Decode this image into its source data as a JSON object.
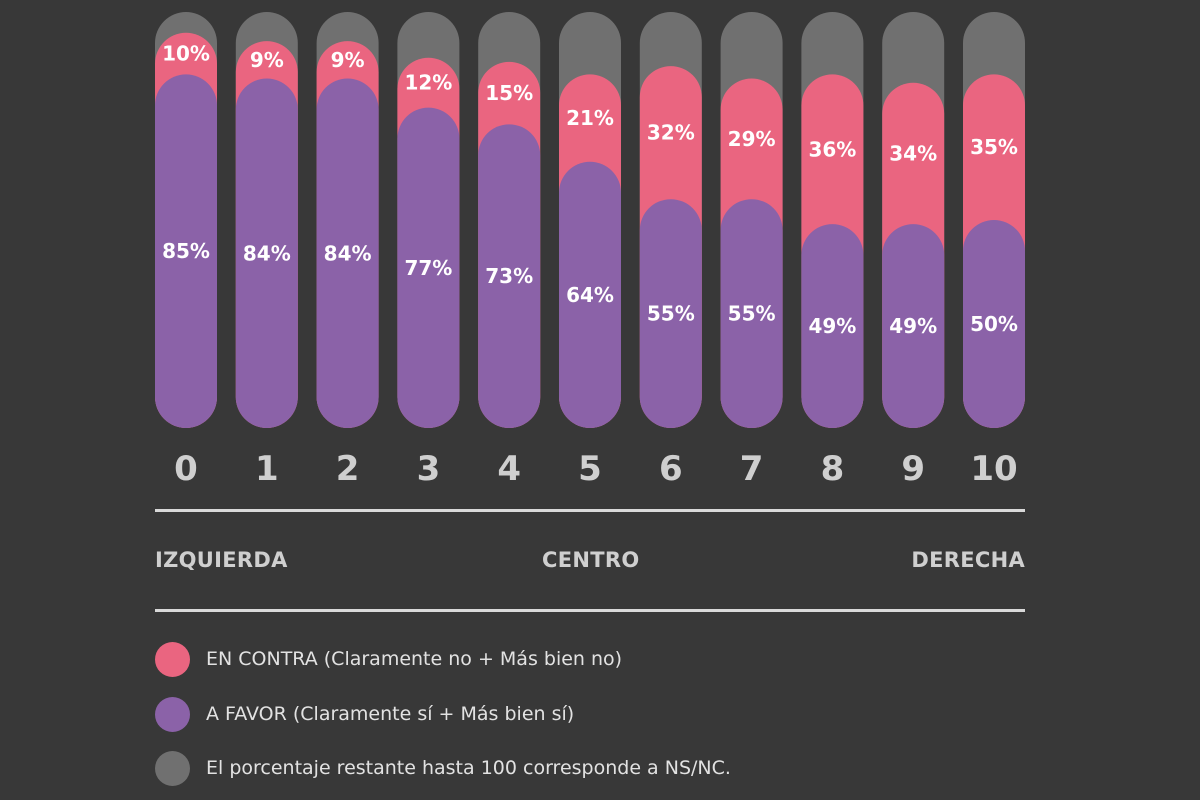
{
  "chart_data": {
    "type": "bar",
    "stacked": true,
    "categories": [
      "0",
      "1",
      "2",
      "3",
      "4",
      "5",
      "6",
      "7",
      "8",
      "9",
      "10"
    ],
    "series": [
      {
        "name": "A FAVOR (Claramente sí + Más bien sí)",
        "color": "#8b62a8",
        "values": [
          85,
          84,
          84,
          77,
          73,
          64,
          55,
          55,
          49,
          49,
          50
        ]
      },
      {
        "name": "EN CONTRA (Claramente no + Más bien no)",
        "color": "#ea6580",
        "values": [
          10,
          9,
          9,
          12,
          15,
          21,
          32,
          29,
          36,
          34,
          35
        ]
      },
      {
        "name": "El porcentaje restante hasta 100 corresponde a NS/NC.",
        "color": "#707070",
        "values": [
          5,
          7,
          7,
          11,
          12,
          15,
          13,
          16,
          15,
          17,
          15
        ]
      }
    ],
    "value_suffix": "%",
    "ylim": [
      0,
      100
    ],
    "grid": false,
    "axis_words": {
      "left": "IZQUIERDA",
      "center": "CENTRO",
      "right": "DERECHA"
    }
  },
  "legend": [
    {
      "label": "EN CONTRA (Claramente no + Más bien no)",
      "color": "#ea6580"
    },
    {
      "label": "A FAVOR (Claramente sí + Más bien sí)",
      "color": "#8b62a8"
    },
    {
      "label": "El porcentaje restante hasta 100 corresponde a NS/NC.",
      "color": "#707070"
    }
  ]
}
